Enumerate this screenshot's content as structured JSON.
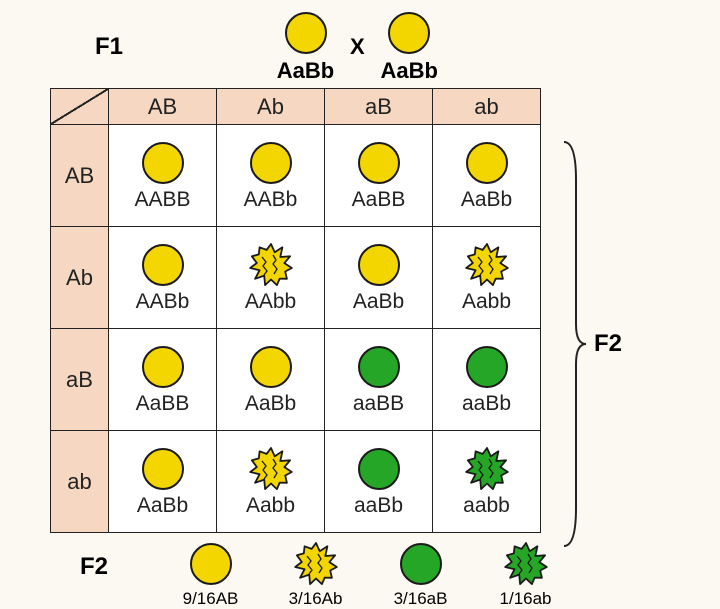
{
  "colors": {
    "yellow": "#f3d500",
    "green": "#26a626",
    "stroke": "#1a1a1a",
    "header_bg": "#f6d8c2",
    "page_bg": "#fbf9f2"
  },
  "f1": {
    "label": "F1",
    "cross_symbol": "X",
    "parent1_genotype": "AaBb",
    "parent2_genotype": "AaBb",
    "parent1_phenotype": {
      "shape": "smooth",
      "color": "yellow"
    },
    "parent2_phenotype": {
      "shape": "smooth",
      "color": "yellow"
    }
  },
  "punnett": {
    "col_headers": [
      "AB",
      "Ab",
      "aB",
      "ab"
    ],
    "row_headers": [
      "AB",
      "Ab",
      "aB",
      "ab"
    ],
    "cells": [
      [
        {
          "genotype": "AABB",
          "shape": "smooth",
          "color": "yellow"
        },
        {
          "genotype": "AABb",
          "shape": "smooth",
          "color": "yellow"
        },
        {
          "genotype": "AaBB",
          "shape": "smooth",
          "color": "yellow"
        },
        {
          "genotype": "AaBb",
          "shape": "smooth",
          "color": "yellow"
        }
      ],
      [
        {
          "genotype": "AABb",
          "shape": "smooth",
          "color": "yellow"
        },
        {
          "genotype": "AAbb",
          "shape": "wrinkled",
          "color": "yellow"
        },
        {
          "genotype": "AaBb",
          "shape": "smooth",
          "color": "yellow"
        },
        {
          "genotype": "Aabb",
          "shape": "wrinkled",
          "color": "yellow"
        }
      ],
      [
        {
          "genotype": "AaBB",
          "shape": "smooth",
          "color": "yellow"
        },
        {
          "genotype": "AaBb",
          "shape": "smooth",
          "color": "yellow"
        },
        {
          "genotype": "aaBB",
          "shape": "smooth",
          "color": "green"
        },
        {
          "genotype": "aaBb",
          "shape": "smooth",
          "color": "green"
        }
      ],
      [
        {
          "genotype": "AaBb",
          "shape": "smooth",
          "color": "yellow"
        },
        {
          "genotype": "Aabb",
          "shape": "wrinkled",
          "color": "yellow"
        },
        {
          "genotype": "aaBb",
          "shape": "smooth",
          "color": "green"
        },
        {
          "genotype": "aabb",
          "shape": "wrinkled",
          "color": "green"
        }
      ]
    ]
  },
  "f2_side_label": "F2",
  "summary": {
    "label": "F2",
    "items": [
      {
        "ratio": "9/16AB",
        "shape": "smooth",
        "color": "yellow"
      },
      {
        "ratio": "3/16Ab",
        "shape": "wrinkled",
        "color": "yellow"
      },
      {
        "ratio": "3/16aB",
        "shape": "smooth",
        "color": "green"
      },
      {
        "ratio": "1/16ab",
        "shape": "wrinkled",
        "color": "green"
      }
    ]
  },
  "phenotype_size": 46
}
